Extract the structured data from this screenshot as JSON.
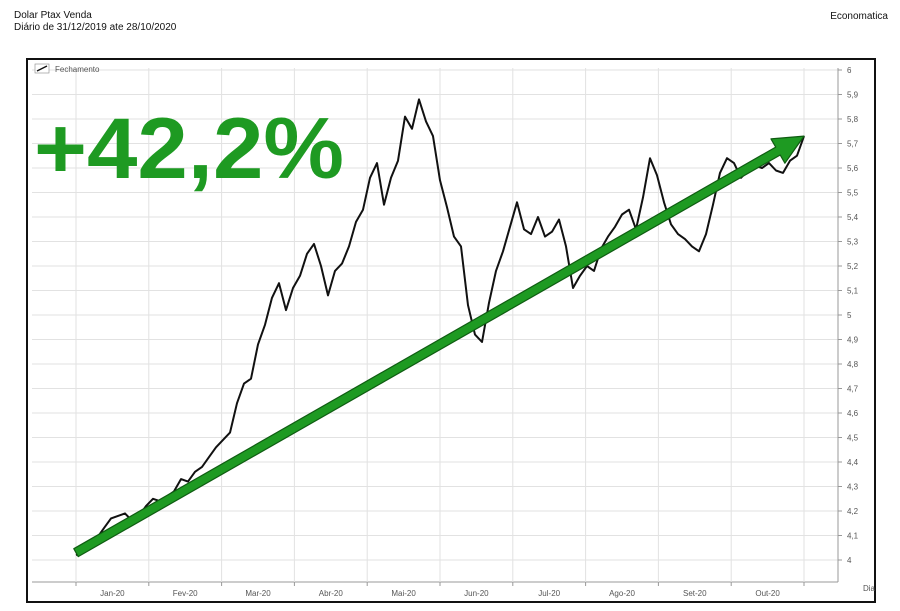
{
  "header": {
    "title": "Dolar Ptax Venda",
    "subtitle": "Diário de 31/12/2019 ate 28/10/2020",
    "brand": "Economatica"
  },
  "annotation": {
    "text": "+42,2%",
    "color": "#1e9a22"
  },
  "chart_data": {
    "type": "line",
    "legend": "Fechamento",
    "legend_placement": "top-left",
    "x_axis_end_label": "Dia",
    "x_ticks": [
      "Jan-20",
      "Fev-20",
      "Mar-20",
      "Abr-20",
      "Mai-20",
      "Jun-20",
      "Jul-20",
      "Ago-20",
      "Set-20",
      "Out-20"
    ],
    "y_ticks": [
      "4",
      "4,1",
      "4,2",
      "4,3",
      "4,4",
      "4,5",
      "4,6",
      "4,7",
      "4,8",
      "4,9",
      "5",
      "5,1",
      "5,2",
      "5,3",
      "5,4",
      "5,5",
      "5,6",
      "5,7",
      "5,8",
      "5,9",
      "6"
    ],
    "ylim": [
      4.0,
      6.0
    ],
    "xlim": [
      0,
      208
    ],
    "grid": true,
    "series": [
      {
        "name": "Fechamento",
        "color": "#111111",
        "x": [
          0,
          2,
          4,
          6,
          8,
          10,
          12,
          14,
          16,
          18,
          20,
          22,
          24,
          26,
          28,
          30,
          32,
          34,
          36,
          38,
          40,
          42,
          44,
          46,
          48,
          50,
          52,
          54,
          56,
          58,
          60,
          62,
          64,
          66,
          68,
          70,
          72,
          74,
          76,
          78,
          80,
          82,
          84,
          86,
          88,
          90,
          92,
          94,
          96,
          98,
          100,
          102,
          104,
          106,
          108,
          110,
          112,
          114,
          116,
          118,
          120,
          122,
          124,
          126,
          128,
          130,
          132,
          134,
          136,
          138,
          140,
          142,
          144,
          146,
          148,
          150,
          152,
          154,
          156,
          158,
          160,
          162,
          164,
          166,
          168,
          170,
          172,
          174,
          176,
          178,
          180,
          182,
          184,
          186,
          188,
          190,
          192,
          194,
          196,
          198,
          200,
          202,
          204,
          206,
          208
        ],
        "values": [
          4.02,
          4.03,
          4.06,
          4.09,
          4.13,
          4.17,
          4.18,
          4.19,
          4.16,
          4.18,
          4.22,
          4.25,
          4.24,
          4.26,
          4.28,
          4.33,
          4.32,
          4.36,
          4.38,
          4.42,
          4.46,
          4.49,
          4.52,
          4.64,
          4.72,
          4.74,
          4.88,
          4.96,
          5.07,
          5.13,
          5.02,
          5.11,
          5.16,
          5.25,
          5.29,
          5.2,
          5.08,
          5.18,
          5.21,
          5.28,
          5.38,
          5.43,
          5.56,
          5.62,
          5.45,
          5.56,
          5.63,
          5.81,
          5.76,
          5.88,
          5.79,
          5.73,
          5.55,
          5.44,
          5.32,
          5.28,
          5.04,
          4.92,
          4.89,
          5.05,
          5.18,
          5.26,
          5.36,
          5.46,
          5.35,
          5.33,
          5.4,
          5.32,
          5.34,
          5.39,
          5.28,
          5.11,
          5.16,
          5.2,
          5.18,
          5.27,
          5.32,
          5.36,
          5.41,
          5.43,
          5.35,
          5.48,
          5.64,
          5.57,
          5.46,
          5.37,
          5.33,
          5.31,
          5.28,
          5.26,
          5.33,
          5.45,
          5.58,
          5.64,
          5.62,
          5.56,
          5.59,
          5.61,
          5.6,
          5.62,
          5.59,
          5.58,
          5.63,
          5.65,
          5.73
        ]
      }
    ],
    "trend_arrow": {
      "x": [
        0,
        208
      ],
      "values": [
        4.03,
        5.73
      ],
      "color": "#1e9a22"
    }
  }
}
